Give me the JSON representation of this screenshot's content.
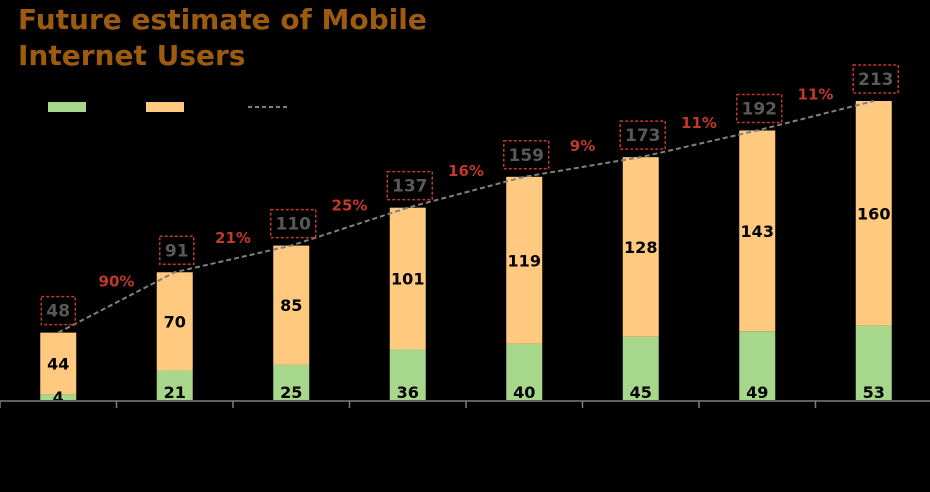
{
  "title": {
    "line1": "Future estimate of Mobile",
    "line2": "Internet Users"
  },
  "colors": {
    "background": "#000000",
    "title": "#9C5B0F",
    "series_green": "#A6D78A",
    "series_orange": "#FFC980",
    "trend_line": "#808080",
    "growth_label": "#C0392B",
    "total_label": "#595959",
    "total_box": "#C0392B",
    "value_label": "#000000",
    "axis": "#7F7F7F"
  },
  "chart_data": {
    "type": "bar",
    "stacked": true,
    "title": "Future estimate of Mobile Internet Users",
    "categories": [
      "",
      "",
      "",
      "",
      "",
      "",
      "",
      ""
    ],
    "series": [
      {
        "name": "",
        "color": "#A6D78A",
        "values": [
          4,
          21,
          25,
          36,
          40,
          45,
          49,
          53
        ]
      },
      {
        "name": "",
        "color": "#FFC980",
        "values": [
          44,
          70,
          85,
          101,
          119,
          128,
          143,
          160
        ]
      }
    ],
    "totals": [
      48,
      91,
      110,
      137,
      159,
      173,
      192,
      213
    ],
    "trend_line": {
      "name": "",
      "style": "dashed",
      "values": [
        48,
        91,
        110,
        137,
        159,
        173,
        192,
        213
      ]
    },
    "growth_labels": [
      "90%",
      "21%",
      "25%",
      "16%",
      "9%",
      "11%",
      "11%"
    ],
    "ylim": [
      0,
      230
    ],
    "xlabel": "",
    "ylabel": "",
    "legend": "top-left"
  }
}
